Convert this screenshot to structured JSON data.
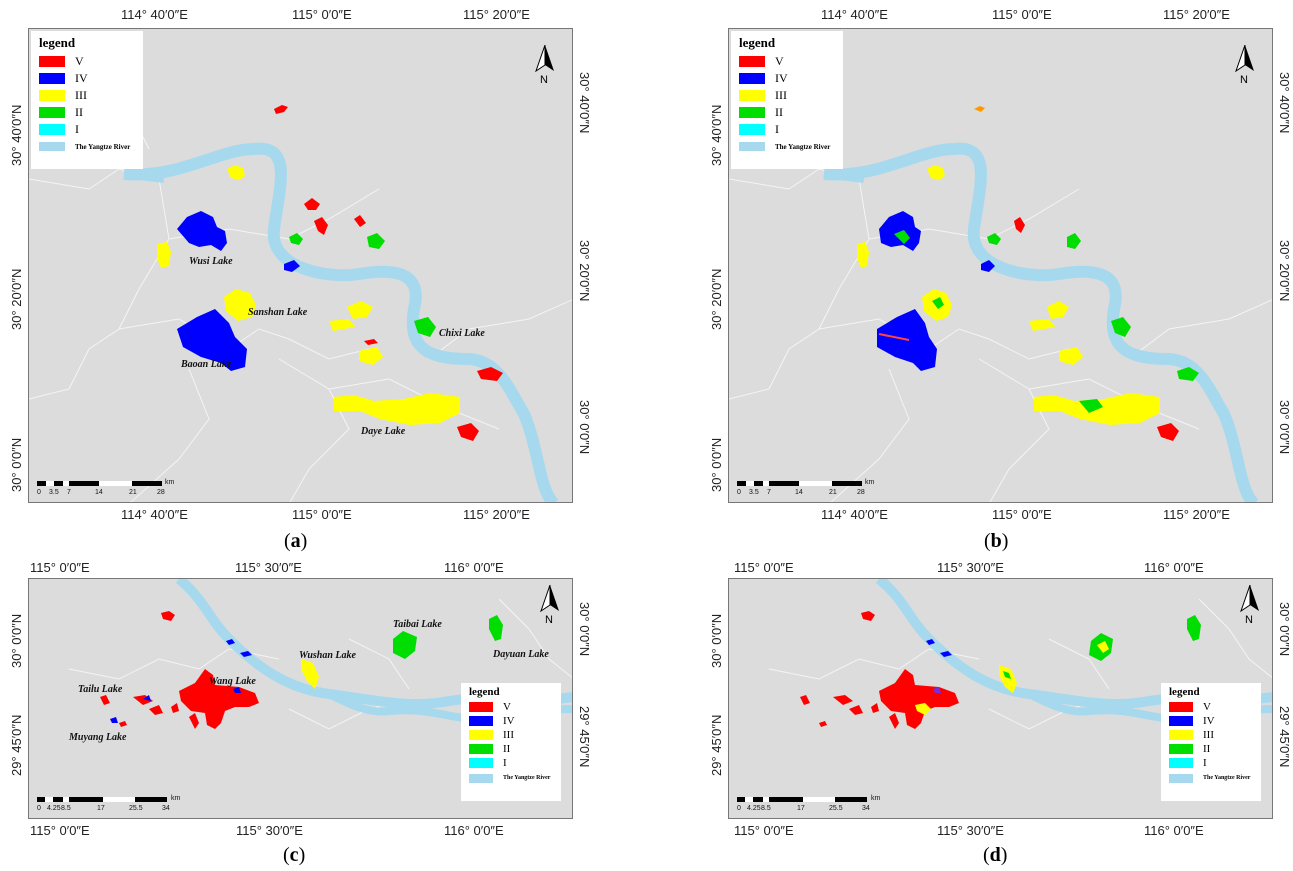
{
  "colors": {
    "V": "#ff0000",
    "IV": "#0000ff",
    "III": "#ffff00",
    "II": "#00dd00",
    "I": "#00ffff",
    "river": "#a6d9ee",
    "map_bg": "#dcdcdc"
  },
  "panels": {
    "a": {
      "caption_open": "(",
      "caption_letter": "a",
      "caption_close": ")",
      "top_coords": [
        "114° 40′0″E",
        "115° 0′0″E",
        "115° 20′0″E"
      ],
      "bottom_coords": [
        "114° 40′0″E",
        "115° 0′0″E",
        "115° 20′0″E"
      ],
      "left_coords": [
        "30° 40′0″N",
        "30° 20′0″N",
        "30° 0′0″N"
      ],
      "right_coords": [
        "30° 40′0″N",
        "30° 20′0″N",
        "30° 0′0″N"
      ],
      "lake_labels": [
        "Wusi Lake",
        "Sanshan Lake",
        "Baoan Lake",
        "Chixi Lake",
        "Daye Lake"
      ],
      "scale_ticks": [
        "0",
        "3.5",
        "7",
        "14",
        "21",
        "28"
      ],
      "scale_unit": "km"
    },
    "b": {
      "caption_open": "(",
      "caption_letter": "b",
      "caption_close": ")",
      "top_coords": [
        "114° 40′0″E",
        "115° 0′0″E",
        "115° 20′0″E"
      ],
      "bottom_coords": [
        "114° 40′0″E",
        "115° 0′0″E",
        "115° 20′0″E"
      ],
      "left_coords": [
        "30° 40′0″N",
        "30° 20′0″N",
        "30° 0′0″N"
      ],
      "right_coords": [
        "30° 40′0″N",
        "30° 20′0″N",
        "30° 0′0″N"
      ],
      "scale_ticks": [
        "0",
        "3.5",
        "7",
        "14",
        "21",
        "28"
      ],
      "scale_unit": "km"
    },
    "c": {
      "caption_open": "(",
      "caption_letter": "c",
      "caption_close": ")",
      "top_coords": [
        "115° 0′0″E",
        "115° 30′0″E",
        "116° 0′0″E"
      ],
      "bottom_coords": [
        "115° 0′0″E",
        "115° 30′0″E",
        "116° 0′0″E"
      ],
      "left_coords": [
        "30° 0′0″N",
        "29° 45′0″N"
      ],
      "right_coords": [
        "30° 0′0″N",
        "29° 45′0″N"
      ],
      "lake_labels": [
        "Taibai Lake",
        "Wushan Lake",
        "Dayuan Lake",
        "Tailu Lake",
        "Wang Lake",
        "Muyang Lake"
      ],
      "scale_ticks": [
        "0",
        "4.25",
        "8.5",
        "17",
        "25.5",
        "34"
      ],
      "scale_unit": "km"
    },
    "d": {
      "caption_open": "(",
      "caption_letter": "d",
      "caption_close": ")",
      "top_coords": [
        "115° 0′0″E",
        "115° 30′0″E",
        "116° 0′0″E"
      ],
      "bottom_coords": [
        "115° 0′0″E",
        "115° 30′0″E",
        "116° 0′0″E"
      ],
      "left_coords": [
        "30° 0′0″N",
        "29° 45′0″N"
      ],
      "right_coords": [
        "30° 0′0″N",
        "29° 45′0″N"
      ],
      "scale_ticks": [
        "0",
        "4.25",
        "8.5",
        "17",
        "25.5",
        "34"
      ],
      "scale_unit": "km"
    }
  },
  "legend": {
    "title": "legend",
    "classes": [
      "V",
      "IV",
      "III",
      "II",
      "I"
    ],
    "river_label": "The Yangtze River"
  },
  "north_label": "N"
}
